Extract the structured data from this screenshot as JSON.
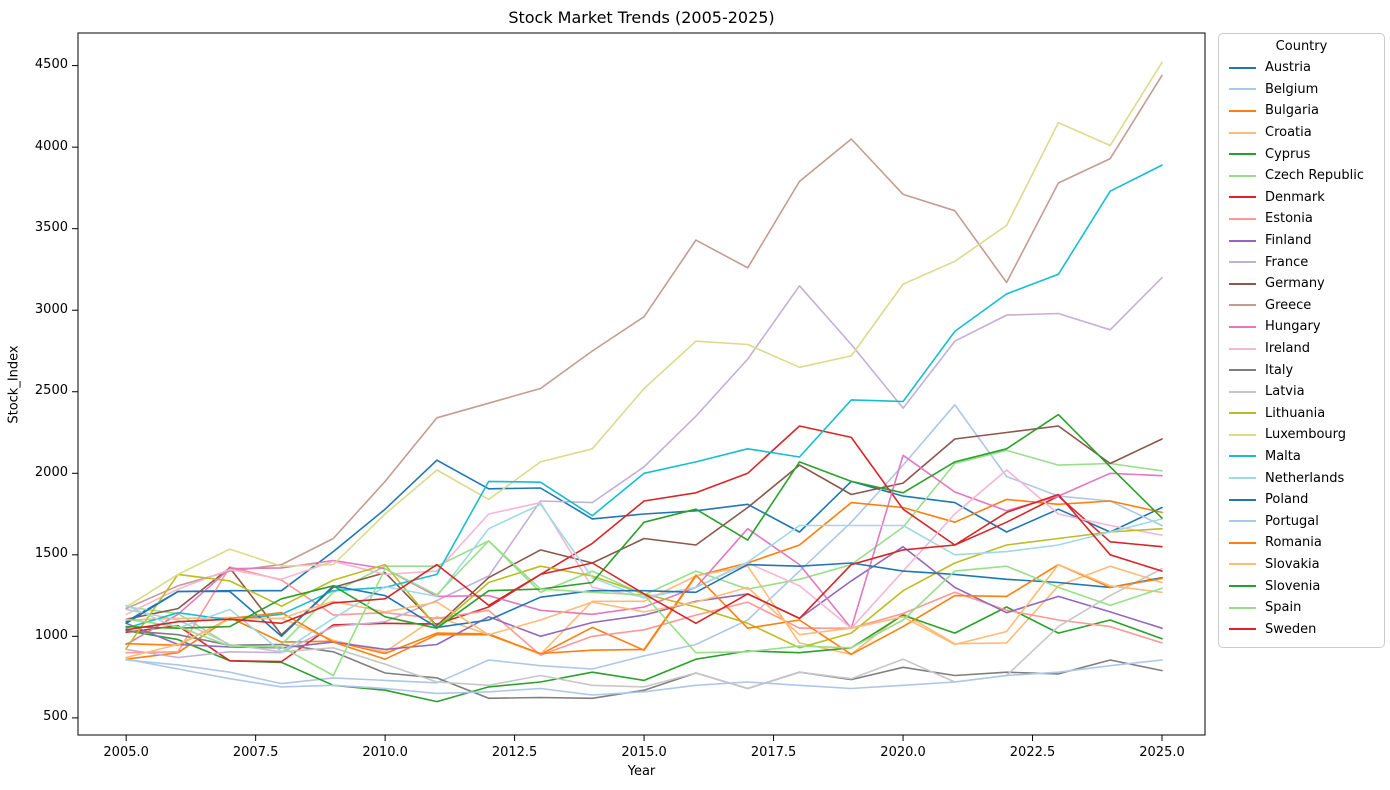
{
  "figure": {
    "title": "Stock Market Trends (2005-2025)",
    "x_axis_label": "Year",
    "y_axis_label": "Stock_Index",
    "legend_title": "Country"
  },
  "chart_data": {
    "type": "line",
    "title": "Stock Market Trends (2005-2025)",
    "xlabel": "Year",
    "ylabel": "Stock_Index",
    "legend_title": "Country",
    "legend_position": "outside upper right",
    "grid": false,
    "xlim": [
      2004.07,
      2025.83
    ],
    "ylim": [
      395,
      4700
    ],
    "x_ticks": [
      2005.0,
      2007.5,
      2010.0,
      2012.5,
      2015.0,
      2017.5,
      2020.0,
      2022.5,
      2025.0
    ],
    "y_ticks": [
      500,
      1000,
      1500,
      2000,
      2500,
      3000,
      3500,
      4000,
      4500
    ],
    "x": [
      2005,
      2006,
      2007,
      2008,
      2009,
      2010,
      2011,
      2012,
      2013,
      2014,
      2015,
      2016,
      2017,
      2018,
      2019,
      2020,
      2021,
      2022,
      2023,
      2024,
      2025
    ],
    "series": [
      {
        "name": "Austria",
        "color": "#1f77b4",
        "values": [
          1090,
          1275,
          1280,
          1280,
          1520,
          1780,
          2080,
          1905,
          1910,
          1720,
          1750,
          1770,
          1810,
          1640,
          1950,
          1860,
          1820,
          1640,
          1780,
          1640,
          1790
        ]
      },
      {
        "name": "Belgium",
        "color": "#aec7e8",
        "values": [
          855,
          825,
          780,
          710,
          745,
          730,
          715,
          855,
          820,
          800,
          880,
          950,
          1100,
          1400,
          1700,
          2050,
          2420,
          1980,
          1860,
          1830,
          1680
        ]
      },
      {
        "name": "Bulgaria",
        "color": "#ff7f0e",
        "values": [
          860,
          900,
          1115,
          965,
          970,
          895,
          1020,
          1015,
          890,
          1055,
          915,
          1370,
          1450,
          1560,
          1820,
          1790,
          1700,
          1840,
          1810,
          1830,
          1760
        ]
      },
      {
        "name": "Croatia",
        "color": "#ffbb78",
        "values": [
          1100,
          1110,
          1115,
          1110,
          975,
          905,
          1120,
          1010,
          890,
          1215,
          1215,
          1370,
          1430,
          960,
          890,
          1140,
          955,
          960,
          1310,
          1430,
          1330
        ]
      },
      {
        "name": "Cyprus",
        "color": "#2ca02c",
        "values": [
          1035,
          980,
          850,
          840,
          700,
          670,
          600,
          690,
          720,
          780,
          730,
          860,
          910,
          900,
          930,
          1130,
          1020,
          1180,
          1020,
          1100,
          985
        ]
      },
      {
        "name": "Czech Republic",
        "color": "#98df8a",
        "values": [
          1180,
          1140,
          945,
          950,
          1270,
          1430,
          1430,
          1585,
          1270,
          1400,
          1255,
          1400,
          1290,
          1350,
          1440,
          1670,
          2060,
          2140,
          2050,
          2060,
          2015
        ]
      },
      {
        "name": "Denmark",
        "color": "#d62728",
        "values": [
          1025,
          1065,
          850,
          845,
          1070,
          1080,
          1075,
          1180,
          1380,
          1570,
          1830,
          1880,
          2000,
          2290,
          2220,
          1780,
          1560,
          1700,
          1860,
          1580,
          1550
        ]
      },
      {
        "name": "Estonia",
        "color": "#ff9896",
        "values": [
          900,
          905,
          1425,
          1345,
          1130,
          1145,
          1110,
          1160,
          885,
          1000,
          1040,
          1130,
          1210,
          1050,
          1050,
          1140,
          1270,
          1160,
          1100,
          1060,
          960
        ]
      },
      {
        "name": "Finland",
        "color": "#9467bd",
        "values": [
          1080,
          950,
          935,
          930,
          965,
          920,
          950,
          1120,
          1000,
          1085,
          1130,
          1215,
          1260,
          1110,
          1340,
          1550,
          1300,
          1145,
          1245,
          1150,
          1050
        ]
      },
      {
        "name": "France",
        "color": "#c5b0d5",
        "values": [
          920,
          870,
          905,
          900,
          1060,
          1090,
          1220,
          1370,
          1830,
          1820,
          2040,
          2350,
          2700,
          3150,
          2790,
          2400,
          2810,
          2970,
          2980,
          2880,
          3200
        ]
      },
      {
        "name": "Germany",
        "color": "#8c564b",
        "values": [
          1105,
          1170,
          1420,
          1010,
          1300,
          1390,
          1065,
          1360,
          1530,
          1450,
          1600,
          1560,
          1790,
          2050,
          1870,
          1940,
          2210,
          2250,
          2290,
          2060,
          2210
        ]
      },
      {
        "name": "Greece",
        "color": "#c49c94",
        "values": [
          1170,
          1310,
          1400,
          1440,
          1600,
          1950,
          2340,
          2430,
          2520,
          2750,
          2960,
          3430,
          3260,
          3790,
          4050,
          3710,
          3610,
          3170,
          3780,
          3930,
          4440
        ]
      },
      {
        "name": "Hungary",
        "color": "#e377c2",
        "values": [
          950,
          1135,
          1415,
          1420,
          1465,
          1415,
          1245,
          1250,
          1160,
          1135,
          1180,
          1300,
          1660,
          1440,
          1050,
          2110,
          1885,
          1770,
          1860,
          2000,
          1985
        ]
      },
      {
        "name": "Ireland",
        "color": "#f7b6d2",
        "values": [
          1135,
          1290,
          1410,
          1350,
          1460,
          1380,
          1400,
          1750,
          1820,
          1300,
          1240,
          1300,
          1450,
          1310,
          1050,
          1400,
          1750,
          2020,
          1750,
          1680,
          1620
        ]
      },
      {
        "name": "Italy",
        "color": "#7f7f7f",
        "values": [
          1035,
          1010,
          945,
          950,
          905,
          775,
          745,
          620,
          625,
          620,
          670,
          775,
          680,
          780,
          735,
          810,
          760,
          780,
          770,
          855,
          790
        ]
      },
      {
        "name": "Latvia",
        "color": "#c7c7c7",
        "values": [
          1165,
          1100,
          950,
          905,
          930,
          830,
          720,
          700,
          760,
          700,
          690,
          775,
          680,
          780,
          740,
          860,
          720,
          760,
          1060,
          1250,
          1415
        ]
      },
      {
        "name": "Lithuania",
        "color": "#bcbd22",
        "values": [
          925,
          1380,
          1340,
          1185,
          1345,
          1440,
          1055,
          1330,
          1430,
          1370,
          1260,
          1180,
          1080,
          930,
          1020,
          1280,
          1450,
          1560,
          1600,
          1640,
          1660
        ]
      },
      {
        "name": "Luxembourg",
        "color": "#dbdb8d",
        "values": [
          1180,
          1380,
          1535,
          1430,
          1440,
          1750,
          2020,
          1840,
          2070,
          2150,
          2520,
          2810,
          2790,
          2650,
          2720,
          3160,
          3300,
          3520,
          4150,
          4010,
          4520
        ]
      },
      {
        "name": "Malta",
        "color": "#17becf",
        "values": [
          1050,
          1145,
          1100,
          1135,
          1280,
          1300,
          1380,
          1950,
          1945,
          1740,
          2000,
          2070,
          2150,
          2100,
          2450,
          2440,
          2870,
          3100,
          3220,
          3730,
          3890
        ]
      },
      {
        "name": "Netherlands",
        "color": "#9edae5",
        "values": [
          1190,
          1050,
          1165,
          905,
          1110,
          1305,
          1245,
          1660,
          1810,
          1360,
          1235,
          1300,
          1455,
          1680,
          1680,
          1680,
          1500,
          1520,
          1560,
          1640,
          1720
        ]
      },
      {
        "name": "Poland",
        "color": "#1f77b4",
        "values": [
          1080,
          1275,
          1275,
          1000,
          1310,
          1250,
          1055,
          1100,
          1240,
          1280,
          1280,
          1270,
          1440,
          1430,
          1450,
          1400,
          1380,
          1350,
          1330,
          1300,
          1360
        ]
      },
      {
        "name": "Portugal",
        "color": "#aec7e8",
        "values": [
          860,
          800,
          740,
          690,
          700,
          680,
          650,
          660,
          680,
          640,
          660,
          700,
          720,
          700,
          680,
          700,
          720,
          760,
          780,
          820,
          855
        ]
      },
      {
        "name": "Romania",
        "color": "#ff7f0e",
        "values": [
          955,
          945,
          1110,
          1145,
          965,
          860,
          1010,
          1010,
          895,
          915,
          920,
          1375,
          1050,
          1100,
          890,
          1060,
          1250,
          1245,
          1440,
          1300,
          1355
        ]
      },
      {
        "name": "Slovakia",
        "color": "#ffbb78",
        "values": [
          870,
          950,
          1105,
          1110,
          1215,
          1150,
          1210,
          1010,
          1100,
          1210,
          1150,
          1210,
          1300,
          1010,
          1050,
          1120,
          950,
          1030,
          1440,
          1310,
          1270
        ]
      },
      {
        "name": "Slovenia",
        "color": "#2ca02c",
        "values": [
          1060,
          1050,
          1060,
          1230,
          1310,
          1120,
          1050,
          1280,
          1290,
          1330,
          1700,
          1780,
          1590,
          2070,
          1950,
          1880,
          2070,
          2150,
          2360,
          2040,
          1725
        ]
      },
      {
        "name": "Spain",
        "color": "#98df8a",
        "values": [
          1105,
          1060,
          940,
          935,
          760,
          1415,
          1255,
          1585,
          1290,
          1270,
          1255,
          900,
          905,
          940,
          930,
          1100,
          1400,
          1430,
          1300,
          1190,
          1295
        ]
      },
      {
        "name": "Sweden",
        "color": "#d62728",
        "values": [
          1040,
          1090,
          1105,
          1080,
          1205,
          1230,
          1440,
          1190,
          1380,
          1450,
          1260,
          1080,
          1260,
          1110,
          1440,
          1530,
          1560,
          1760,
          1870,
          1500,
          1400
        ]
      }
    ]
  }
}
